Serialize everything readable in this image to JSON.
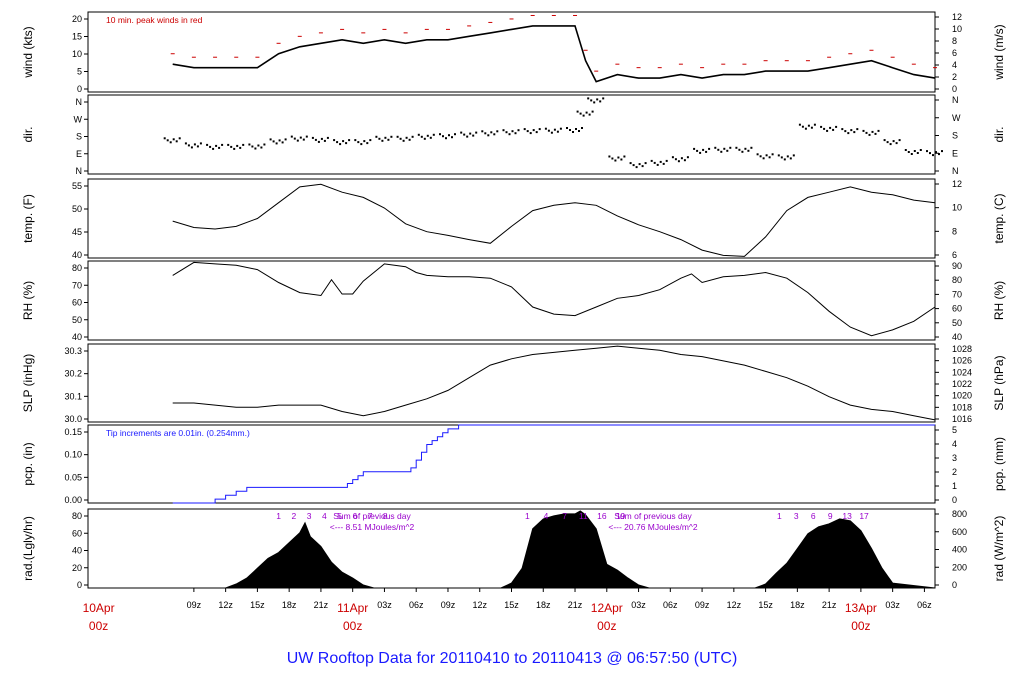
{
  "footer": {
    "title": "UW Rooftop Data for 20110410  to  20110413 @ 06:57:50  (UTC)"
  },
  "chart_data": {
    "type": "line",
    "hours_start_offset": -1,
    "hours_end_offset": 79,
    "x_time_ticks": [
      "09z",
      "12z",
      "15z",
      "18z",
      "21z",
      "11Apr",
      "03z",
      "06z",
      "09z",
      "12z",
      "15z",
      "18z",
      "21z",
      "12Apr",
      "03z",
      "06z",
      "09z",
      "12z",
      "15z",
      "18z",
      "21z",
      "13Apr",
      "03z",
      "06z"
    ],
    "x_day_labels": [
      {
        "day": "10Apr",
        "hour": "00z",
        "at_hour": 0
      },
      {
        "day": "11Apr",
        "hour": "00z",
        "at_hour": 24
      },
      {
        "day": "12Apr",
        "hour": "00z",
        "at_hour": 48
      },
      {
        "day": "13Apr",
        "hour": "00z",
        "at_hour": 72
      }
    ],
    "panels": [
      {
        "id": "wind",
        "ylabel_left": "wind (kts)",
        "ylabel_right": "wind (m/s)",
        "ylim": [
          0,
          23
        ],
        "yticks_left": [
          "0",
          "5",
          "10",
          "15",
          "20"
        ],
        "yticks_right": [
          "0",
          "2",
          "4",
          "6",
          "8",
          "10",
          "12"
        ],
        "annotation": "10 min. peak winds in red",
        "peak_color": "#cc0000",
        "series": [
          {
            "x": [
              7,
              9,
              11,
              13,
              15,
              17,
              19,
              21,
              23,
              25,
              27,
              29,
              31,
              33,
              35,
              37,
              39,
              41,
              43,
              45,
              46,
              47,
              49,
              51,
              53,
              55,
              57,
              59,
              61,
              63,
              65,
              67,
              69,
              71,
              73,
              75,
              77,
              79
            ],
            "y": [
              8,
              7,
              7,
              7,
              7,
              11,
              13,
              14,
              15,
              14,
              15,
              14,
              15,
              15,
              16,
              17,
              18,
              19,
              19,
              19,
              9,
              3,
              5,
              4,
              4,
              5,
              4,
              5,
              5,
              6,
              6,
              6,
              7,
              8,
              9,
              7,
              5,
              4
            ]
          }
        ]
      },
      {
        "id": "dir",
        "ylabel_left": "dir.",
        "ylabel_right": "dir.",
        "ylim": [
          0,
          360
        ],
        "yticks_left": [
          "N",
          "E",
          "S",
          "W",
          "N"
        ],
        "yticks_right": [
          "N",
          "E",
          "S",
          "W",
          "N"
        ],
        "series": [
          {
            "x": [
              7,
              9,
              11,
              13,
              15,
              17,
              19,
              21,
              23,
              25,
              27,
              29,
              31,
              33,
              35,
              37,
              39,
              41,
              43,
              45,
              46,
              47,
              49,
              51,
              53,
              55,
              57,
              59,
              61,
              63,
              65,
              67,
              69,
              71,
              73,
              75,
              77,
              79
            ],
            "y": [
              158,
              135,
              128,
              128,
              130,
              153,
              166,
              160,
              150,
              150,
              165,
              165,
              174,
              177,
              184,
              190,
              195,
              200,
              202,
              205,
              280,
              340,
              75,
              45,
              55,
              72,
              110,
              115,
              115,
              85,
              80,
              220,
              210,
              200,
              192,
              150,
              105,
              100
            ]
          }
        ]
      },
      {
        "id": "temp",
        "ylabel_left": "temp. (F)",
        "ylabel_right": "temp. (C)",
        "ylim": [
          40,
          55
        ],
        "yticks_left": [
          "40",
          "45",
          "50",
          "55"
        ],
        "yticks_right": [
          "6",
          "8",
          "10",
          "12"
        ],
        "series": [
          {
            "x": [
              7,
              9,
              11,
              13,
              15,
              17,
              19,
              21,
              23,
              25,
              27,
              29,
              31,
              33,
              35,
              37,
              39,
              41,
              43,
              45,
              47,
              49,
              51,
              53,
              55,
              57,
              59,
              61,
              63,
              65,
              67,
              69,
              71,
              73,
              75,
              77,
              79
            ],
            "y": [
              47,
              45.8,
              45.5,
              46,
              47.5,
              50.5,
              53.5,
              54,
              52.5,
              51.5,
              49.5,
              46.5,
              45,
              44.3,
              43.5,
              42.8,
              46,
              49,
              50,
              50.5,
              50,
              48,
              46.3,
              45,
              43.5,
              41.5,
              40.5,
              40.3,
              44,
              49,
              51.5,
              52.5,
              53.5,
              52.5,
              52,
              51,
              50.5
            ]
          }
        ]
      },
      {
        "id": "rh",
        "ylabel_left": "RH (%)",
        "ylabel_right": "RH (%)",
        "ylim": [
          35,
          90
        ],
        "yticks_left": [
          "40",
          "50",
          "60",
          "70",
          "80"
        ],
        "yticks_right": [
          "40",
          "50",
          "60",
          "70",
          "80",
          "90"
        ],
        "series": [
          {
            "x": [
              7,
              9,
              11,
              13,
              15,
              17,
              19,
              21,
              22,
              23,
              24,
              25,
              27,
              29,
              30,
              31,
              33,
              35,
              37,
              39,
              41,
              43,
              45,
              47,
              49,
              51,
              53,
              55,
              56,
              57,
              59,
              61,
              63,
              65,
              67,
              69,
              71,
              73,
              75,
              77,
              79
            ],
            "y": [
              80,
              89,
              88,
              87,
              84,
              75,
              68,
              66,
              77,
              67,
              67,
              76,
              88,
              86,
              82,
              80,
              79,
              79,
              78,
              72,
              58,
              53,
              52,
              58,
              64,
              66,
              70,
              78,
              81,
              75,
              79,
              80,
              82,
              78,
              68,
              55,
              44,
              38,
              42,
              48,
              58
            ]
          }
        ]
      },
      {
        "id": "slp",
        "ylabel_left": "SLP (inHg)",
        "ylabel_right": "SLP (hPa)",
        "ylim": [
          29.99,
          30.36
        ],
        "yticks_left": [
          "30.0",
          "30.1",
          "30.2",
          "30.3"
        ],
        "yticks_right": [
          "1016",
          "1018",
          "1020",
          "1022",
          "1024",
          "1026",
          "1028"
        ],
        "series": [
          {
            "x": [
              7,
              9,
              11,
              13,
              15,
              17,
              19,
              21,
              23,
              25,
              27,
              29,
              31,
              33,
              35,
              37,
              39,
              41,
              43,
              45,
              47,
              49,
              51,
              53,
              55,
              57,
              59,
              61,
              63,
              65,
              67,
              69,
              71,
              73,
              75,
              77,
              79
            ],
            "y": [
              30.08,
              30.08,
              30.07,
              30.06,
              30.06,
              30.07,
              30.07,
              30.07,
              30.04,
              30.02,
              30.04,
              30.07,
              30.1,
              30.14,
              30.2,
              30.26,
              30.29,
              30.31,
              30.32,
              30.33,
              30.34,
              30.35,
              30.34,
              30.33,
              30.31,
              30.3,
              30.28,
              30.26,
              30.23,
              30.2,
              30.16,
              30.11,
              30.07,
              30.05,
              30.04,
              30.02,
              30.0
            ]
          }
        ]
      },
      {
        "id": "pcp",
        "ylabel_left": "pcp. (in)",
        "ylabel_right": "pcp. (mm)",
        "ylim": [
          0,
          0.2
        ],
        "yticks_left": [
          "0.00",
          "0.05",
          "0.10",
          "0.15"
        ],
        "yticks_right": [
          "0",
          "1",
          "2",
          "3",
          "4",
          "5"
        ],
        "annotation": "Tip increments are 0.01in. (0.254mm.)",
        "series": [
          {
            "step": true,
            "x": [
              7,
              9,
              11,
              12,
              13,
              14,
              17,
              20,
              23,
              23.5,
              24,
              24.5,
              25,
              27,
              29,
              29.5,
              30,
              30.5,
              31,
              31.5,
              32,
              32.5,
              33,
              34,
              79
            ],
            "y": [
              0,
              0,
              0.01,
              0.02,
              0.03,
              0.04,
              0.04,
              0.04,
              0.04,
              0.05,
              0.06,
              0.07,
              0.08,
              0.08,
              0.08,
              0.09,
              0.11,
              0.13,
              0.15,
              0.16,
              0.17,
              0.18,
              0.19,
              0.2,
              0.2
            ]
          }
        ]
      },
      {
        "id": "rad",
        "ylabel_left": "rad.(Lgly/hr)",
        "ylabel_right": "rad (W/m^2)",
        "ylim": [
          0,
          80
        ],
        "yticks_left": [
          "0",
          "20",
          "40",
          "60",
          "80"
        ],
        "yticks_right": [
          "0",
          "200",
          "400",
          "600",
          "800"
        ],
        "fill": "#000000",
        "series": [
          {
            "x": [
              7,
              12,
              13,
              14,
              15,
              16,
              17,
              18,
              19,
              19.5,
              20,
              21,
              22,
              23,
              24,
              25,
              26,
              27,
              38,
              39,
              40,
              41,
              42,
              43,
              44,
              45,
              45.5,
              46,
              47,
              48,
              49,
              50,
              51,
              52,
              62,
              63,
              64,
              65,
              66,
              67,
              68,
              69,
              70,
              71,
              72,
              73,
              74,
              75,
              79
            ],
            "y": [
              0,
              0,
              4,
              10,
              20,
              30,
              36,
              46,
              56,
              66,
              52,
              42,
              26,
              16,
              10,
              3,
              0,
              0,
              0,
              5,
              20,
              60,
              70,
              73,
              75,
              75,
              78,
              74,
              60,
              24,
              18,
              10,
              3,
              0,
              0,
              4,
              15,
              25,
              40,
              55,
              62,
              65,
              70,
              68,
              58,
              40,
              20,
              5,
              0
            ]
          }
        ]
      }
    ],
    "markers_day1": {
      "labels": [
        "1",
        "2",
        "3",
        "4",
        "5",
        "6",
        "7",
        "8"
      ],
      "note": "Sum of previous day",
      "value": "<--- 8.51 MJoules/m^2"
    },
    "markers_day2": {
      "labels": [
        "1",
        "4",
        "7",
        "11",
        "16",
        "19"
      ],
      "note": "Sum of previous day",
      "value": "<--- 20.76 MJoules/m^2"
    },
    "markers_day3": {
      "labels": [
        "1",
        "3",
        "6",
        "9",
        "13",
        "17"
      ]
    }
  }
}
